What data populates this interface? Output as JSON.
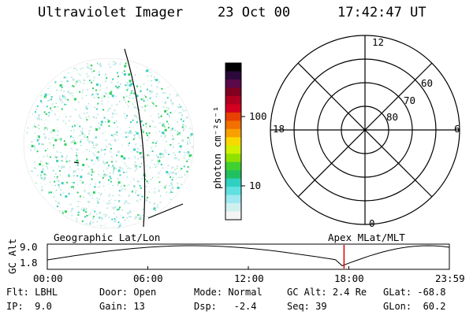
{
  "header": {
    "instrument": "Ultraviolet Imager",
    "date": "23 Oct 00",
    "time": "17:42:47 UT"
  },
  "colorbar": {
    "unit_label": "photon cm⁻²s⁻¹",
    "ticks": [
      "100",
      "10"
    ],
    "colors": [
      "#000000",
      "#2a0a3a",
      "#5a0a4a",
      "#800020",
      "#b00020",
      "#d40020",
      "#e84000",
      "#f07000",
      "#f8a000",
      "#f8d800",
      "#d0f000",
      "#90e000",
      "#40d030",
      "#20c060",
      "#30d0c0",
      "#60e0e0",
      "#a0e8f0",
      "#d0f0f0",
      "#f4f4f4"
    ]
  },
  "polar_plot": {
    "mlt_labels": {
      "top": "12",
      "left": "18",
      "right": "6",
      "bottom": "0"
    },
    "lat_labels": [
      "60",
      "70",
      "80"
    ]
  },
  "timeline": {
    "left_label": "Geographic Lat/Lon",
    "right_label": "Apex MLat/MLT",
    "axis_title": "GC Alt",
    "y_ticks": [
      "9.0",
      "1.8"
    ],
    "x_ticks": [
      "00:00",
      "06:00",
      "12:00",
      "18:00",
      "23:59"
    ],
    "marker_time_fraction": 0.7381,
    "marker_color": "#e00000"
  },
  "info": {
    "row1": [
      {
        "label": "Flt:",
        "value": "LBHL"
      },
      {
        "label": "Door:",
        "value": "Open"
      },
      {
        "label": "Mode:",
        "value": "Normal"
      },
      {
        "label": "GC Alt:",
        "value": "2.4 Re"
      },
      {
        "label": "GLat:",
        "value": "-68.8"
      }
    ],
    "row2": [
      {
        "label": "IP:",
        "value": "9.0"
      },
      {
        "label": "Gain:",
        "value": "13"
      },
      {
        "label": "Dsp:",
        "value": "-2.4"
      },
      {
        "label": "Seq:",
        "value": "39"
      },
      {
        "label": "GLon:",
        "value": "60.2"
      }
    ]
  },
  "image_colors": {
    "speckle_light": "#c8e8e8",
    "speckle_mid": "#40d0c0",
    "speckle_green": "#30d060"
  }
}
